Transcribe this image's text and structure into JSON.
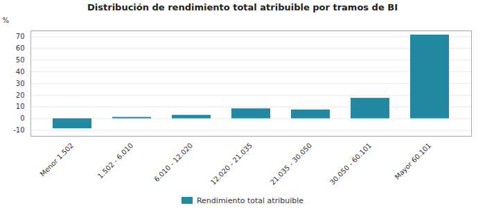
{
  "chart_data": {
    "type": "bar",
    "title": "Distribución de rendimiento total atribuible por tramos de BI",
    "categories": [
      "Menor 1.502",
      "1.502 - 6.010",
      "6.010 - 12.020",
      "12.020 - 21.035",
      "21.035 - 30.050",
      "30.050 - 60.101",
      "Mayor 60.101"
    ],
    "series": [
      {
        "name": "Rendimiento total atribuible",
        "color": "#2389a0",
        "values": [
          -8.5,
          1.2,
          3.0,
          8.5,
          7.5,
          17.5,
          71.5
        ]
      }
    ],
    "ylabel": "%",
    "ylim": [
      -15,
      75
    ],
    "yticks": [
      -10,
      0,
      10,
      20,
      30,
      40,
      50,
      60,
      70
    ],
    "grid": true,
    "legend": "bottom"
  }
}
